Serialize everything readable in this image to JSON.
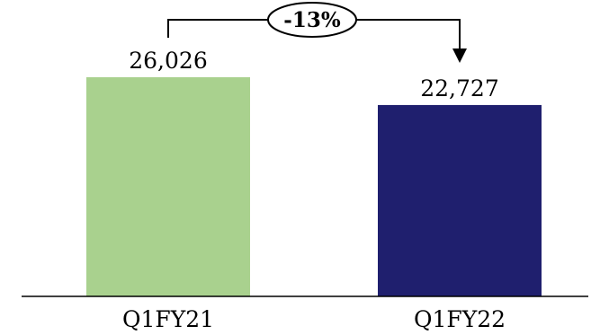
{
  "chart_data": {
    "type": "bar",
    "categories": [
      "Q1FY21",
      "Q1FY22"
    ],
    "values": [
      26026,
      22727
    ],
    "value_labels": [
      "26,026",
      "22,727"
    ],
    "colors": [
      "#a9d18e",
      "#1f1f6e"
    ],
    "ylim": [
      0,
      26026
    ],
    "annotation": {
      "text": "-13%",
      "from": "Q1FY21",
      "to": "Q1FY22"
    }
  }
}
